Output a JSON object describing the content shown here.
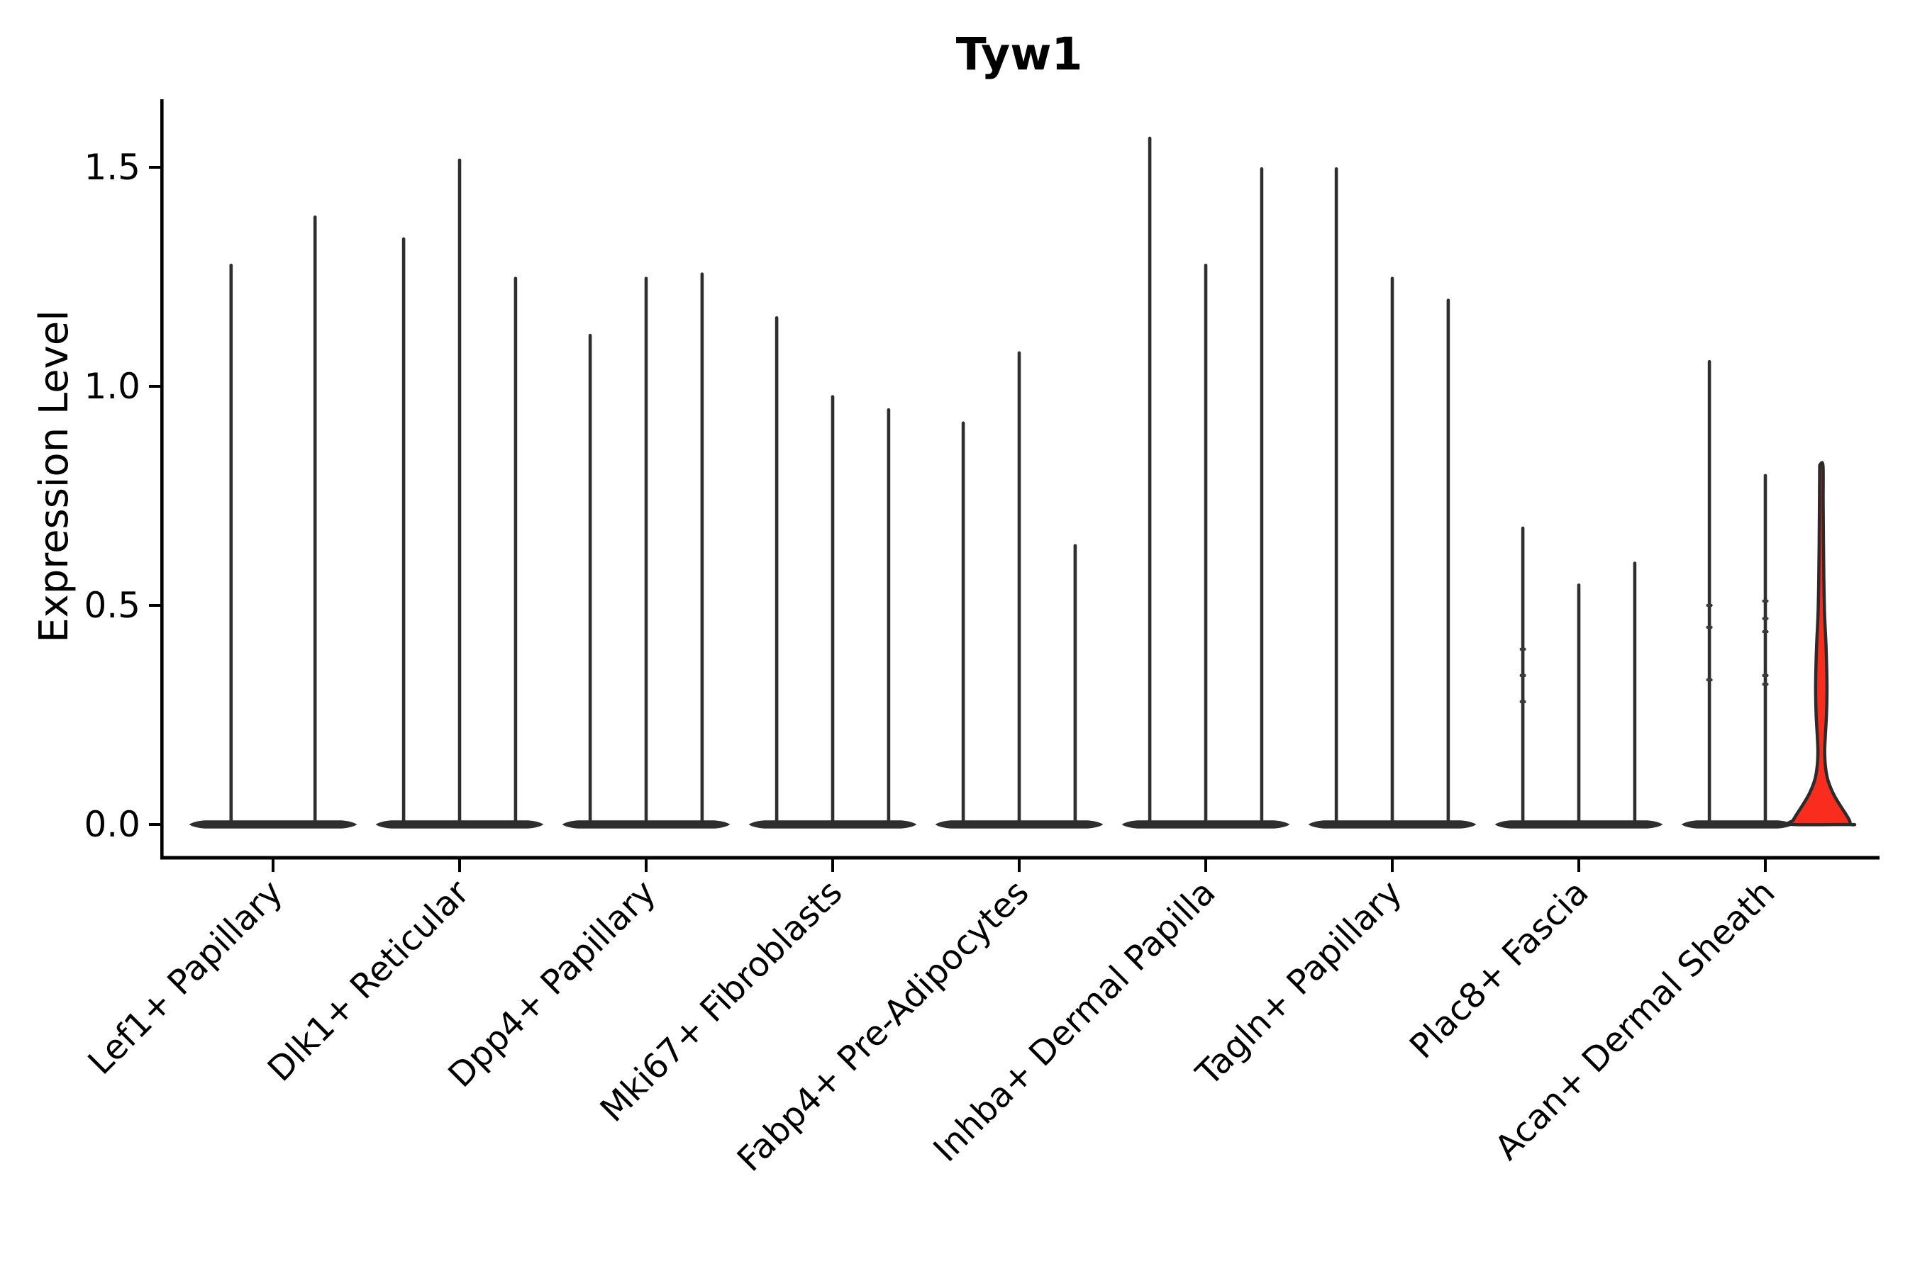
{
  "chart_data": {
    "type": "violin",
    "title": "Tyw1",
    "ylabel": "Expression Level",
    "xlabel": "",
    "grid": false,
    "legend": null,
    "ylim": [
      -0.08,
      1.66
    ],
    "yticks": [
      0.0,
      0.5,
      1.0,
      1.5
    ],
    "ytick_labels": [
      "0.0",
      "0.5",
      "1.0",
      "1.5"
    ],
    "categories": [
      "Lef1+ Papillary",
      "Dlk1+ Reticular",
      "Dpp4+ Papillary",
      "Mki67+ Fibroblasts",
      "Fabp4+ Pre-Adipocytes",
      "Inhba+ Dermal Papilla",
      "Tagln+ Papillary",
      "Plac8+ Fascia",
      "Acan+ Dermal Sheath"
    ],
    "series": [
      {
        "category": "Lef1+ Papillary",
        "violins": [
          {
            "max": 1.28
          },
          {
            "max": 1.39
          }
        ]
      },
      {
        "category": "Dlk1+ Reticular",
        "violins": [
          {
            "max": 1.34
          },
          {
            "max": 1.52
          },
          {
            "max": 1.25
          }
        ]
      },
      {
        "category": "Dpp4+ Papillary",
        "violins": [
          {
            "max": 1.12
          },
          {
            "max": 1.25
          },
          {
            "max": 1.26
          }
        ]
      },
      {
        "category": "Mki67+ Fibroblasts",
        "violins": [
          {
            "max": 1.16
          },
          {
            "max": 0.98
          },
          {
            "max": 0.95
          }
        ]
      },
      {
        "category": "Fabp4+ Pre-Adipocytes",
        "violins": [
          {
            "max": 0.92
          },
          {
            "max": 1.08
          },
          {
            "max": 0.64
          }
        ]
      },
      {
        "category": "Inhba+ Dermal Papilla",
        "violins": [
          {
            "max": 1.57
          },
          {
            "max": 1.28
          },
          {
            "max": 1.5
          }
        ]
      },
      {
        "category": "Tagln+ Papillary",
        "violins": [
          {
            "max": 1.5
          },
          {
            "max": 1.25
          },
          {
            "max": 1.2
          }
        ]
      },
      {
        "category": "Plac8+ Fascia",
        "violins": [
          {
            "max": 0.68,
            "dots": [
              0.4,
              0.34,
              0.28
            ]
          },
          {
            "max": 0.55
          },
          {
            "max": 0.6
          }
        ]
      },
      {
        "category": "Acan+ Dermal Sheath",
        "violins": [
          {
            "max": 1.06,
            "dots": [
              0.5,
              0.45,
              0.33
            ]
          },
          {
            "max": 0.8,
            "dots": [
              0.51,
              0.47,
              0.44,
              0.34,
              0.32
            ]
          },
          {
            "max": 0.82,
            "highlight": true,
            "profile": [
              [
                0.82,
                2.3
              ],
              [
                0.74,
                2.6
              ],
              [
                0.65,
                3.0
              ],
              [
                0.56,
                3.6
              ],
              [
                0.48,
                4.6
              ],
              [
                0.41,
                6.6
              ],
              [
                0.35,
                7.7
              ],
              [
                0.3,
                8.0
              ],
              [
                0.25,
                7.3
              ],
              [
                0.2,
                5.6
              ],
              [
                0.165,
                4.8
              ],
              [
                0.13,
                6.0
              ],
              [
                0.1,
                9.5
              ],
              [
                0.07,
                17
              ],
              [
                0.045,
                26
              ],
              [
                0.025,
                34
              ],
              [
                0.01,
                39.5
              ],
              [
                0.0,
                41
              ]
            ]
          }
        ]
      }
    ],
    "colors": {
      "violin": "#2e2e2e",
      "outline": "#2b2b2b",
      "highlight_fill": "#fa2c1e",
      "jitter_dot": "#3a3a3a",
      "text": "#000000"
    }
  }
}
